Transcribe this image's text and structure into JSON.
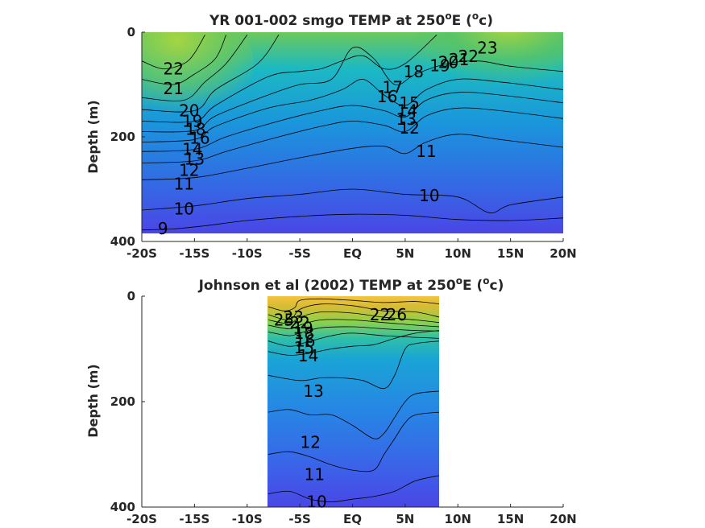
{
  "colors": {
    "low": "#4a46e6",
    "mid": "#14b6c9",
    "green": "#8fd14a",
    "high": "#f6c93c",
    "text": "#262626"
  },
  "chart_data": [
    {
      "type": "contour",
      "title_main": "YR 001-002 smgo TEMP at 250",
      "title_sup": "o",
      "title_mid": "E (",
      "title_end": "c)",
      "xlabel": "",
      "ylabel": "Depth (m)",
      "xlim": [
        -20,
        20
      ],
      "ylim": [
        400,
        0
      ],
      "x_ticks": [
        {
          "value": -20,
          "label": "-20S"
        },
        {
          "value": -15,
          "label": "-15S"
        },
        {
          "value": -10,
          "label": "-10S"
        },
        {
          "value": -5,
          "label": "-5S"
        },
        {
          "value": 0,
          "label": "EQ"
        },
        {
          "value": 5,
          "label": "5N"
        },
        {
          "value": 10,
          "label": "10N"
        },
        {
          "value": 15,
          "label": "15N"
        },
        {
          "value": 20,
          "label": "20N"
        }
      ],
      "y_ticks": [
        {
          "value": 0,
          "label": "0"
        },
        {
          "value": 200,
          "label": "200"
        },
        {
          "value": 400,
          "label": "400"
        }
      ],
      "data_extent": {
        "x": [
          -20,
          20
        ],
        "y": [
          0,
          382
        ]
      },
      "contour_labels": [
        {
          "text": "22",
          "x": -17.0,
          "y": 70
        },
        {
          "text": "21",
          "x": -17.0,
          "y": 108
        },
        {
          "text": "20",
          "x": -15.5,
          "y": 150
        },
        {
          "text": "19",
          "x": -15.2,
          "y": 170
        },
        {
          "text": "18",
          "x": -14.9,
          "y": 185
        },
        {
          "text": "16",
          "x": -14.5,
          "y": 202
        },
        {
          "text": "14",
          "x": -15.2,
          "y": 224
        },
        {
          "text": "13",
          "x": -15.0,
          "y": 242
        },
        {
          "text": "12",
          "x": -15.5,
          "y": 264
        },
        {
          "text": "11",
          "x": -16.0,
          "y": 290
        },
        {
          "text": "10",
          "x": -16.0,
          "y": 338
        },
        {
          "text": "9",
          "x": -18.0,
          "y": 375
        },
        {
          "text": "18",
          "x": 5.8,
          "y": 75
        },
        {
          "text": "19",
          "x": 8.3,
          "y": 64
        },
        {
          "text": "20",
          "x": 9.1,
          "y": 58
        },
        {
          "text": "21",
          "x": 10.1,
          "y": 52
        },
        {
          "text": "22",
          "x": 11.0,
          "y": 46
        },
        {
          "text": "23",
          "x": 12.8,
          "y": 30
        },
        {
          "text": "17",
          "x": 3.8,
          "y": 105
        },
        {
          "text": "16",
          "x": 3.3,
          "y": 123
        },
        {
          "text": "15",
          "x": 5.4,
          "y": 135
        },
        {
          "text": "14",
          "x": 5.2,
          "y": 150
        },
        {
          "text": "13",
          "x": 5.1,
          "y": 166
        },
        {
          "text": "12",
          "x": 5.4,
          "y": 183
        },
        {
          "text": "11",
          "x": 7.0,
          "y": 228
        },
        {
          "text": "10",
          "x": 7.3,
          "y": 312
        }
      ],
      "contour_lines": [
        {
          "level": 22,
          "x": [
            -20,
            -18,
            -16,
            -15,
            -14
          ],
          "y": [
            55,
            70,
            60,
            40,
            5
          ]
        },
        {
          "level": 21,
          "x": [
            -20,
            -17,
            -15,
            -13,
            -12
          ],
          "y": [
            90,
            100,
            80,
            50,
            5
          ]
        },
        {
          "level": 20,
          "x": [
            -20,
            -16,
            -14,
            -12,
            -10
          ],
          "y": [
            125,
            130,
            95,
            60,
            5
          ]
        },
        {
          "level": 19,
          "x": [
            -20,
            -15,
            -13,
            -9,
            -7
          ],
          "y": [
            148,
            150,
            110,
            60,
            5
          ]
        },
        {
          "level": 18,
          "x": [
            -20,
            -15,
            -13,
            -8,
            -5,
            -3,
            -1,
            1,
            3,
            5,
            8
          ],
          "y": [
            170,
            170,
            140,
            85,
            75,
            70,
            55,
            45,
            70,
            60,
            5
          ]
        },
        {
          "level": 16,
          "x": [
            -20,
            -15,
            -13,
            -8,
            -5,
            -2,
            0,
            2,
            4,
            6,
            9,
            12,
            15,
            20
          ],
          "y": [
            190,
            188,
            160,
            120,
            100,
            90,
            30,
            50,
            100,
            80,
            60,
            55,
            65,
            75
          ]
        },
        {
          "level": 14,
          "x": [
            -20,
            -15,
            -13,
            -8,
            -4,
            -1,
            1,
            3,
            5,
            7,
            10,
            14,
            20
          ],
          "y": [
            210,
            205,
            180,
            145,
            130,
            110,
            90,
            120,
            140,
            110,
            90,
            95,
            110
          ]
        },
        {
          "level": 13,
          "x": [
            -20,
            -15,
            -12,
            -7,
            -3,
            0,
            3,
            5,
            7,
            10,
            14,
            20
          ],
          "y": [
            228,
            224,
            200,
            170,
            150,
            140,
            150,
            162,
            130,
            115,
            120,
            135
          ]
        },
        {
          "level": 12,
          "x": [
            -20,
            -15,
            -12,
            -7,
            -3,
            0,
            3,
            5,
            7,
            10,
            14,
            20
          ],
          "y": [
            250,
            246,
            228,
            200,
            180,
            170,
            178,
            190,
            160,
            145,
            150,
            165
          ]
        },
        {
          "level": 11,
          "x": [
            -20,
            -15,
            -10,
            -5,
            0,
            3,
            5,
            7,
            10,
            14,
            20
          ],
          "y": [
            282,
            278,
            260,
            240,
            222,
            218,
            232,
            210,
            195,
            205,
            220
          ]
        },
        {
          "level": 10,
          "x": [
            -20,
            -15,
            -10,
            -5,
            0,
            5,
            10,
            13,
            15,
            20
          ],
          "y": [
            340,
            332,
            318,
            310,
            300,
            310,
            315,
            345,
            330,
            315
          ]
        },
        {
          "level": 9,
          "x": [
            -20,
            -17,
            -14,
            -10,
            -5,
            0,
            5,
            10,
            15,
            20
          ],
          "y": [
            378,
            376,
            370,
            360,
            352,
            348,
            350,
            358,
            360,
            355
          ]
        }
      ]
    },
    {
      "type": "contour",
      "title_main": "Johnson et al (2002) TEMP at 250",
      "title_sup": "o",
      "title_mid": "E (",
      "title_end": "c)",
      "xlabel": "",
      "ylabel": "Depth (m)",
      "xlim": [
        -20,
        20
      ],
      "ylim": [
        400,
        0
      ],
      "x_ticks": [
        {
          "value": -20,
          "label": "-20S"
        },
        {
          "value": -15,
          "label": "-15S"
        },
        {
          "value": -10,
          "label": "-10S"
        },
        {
          "value": -5,
          "label": "-5S"
        },
        {
          "value": 0,
          "label": "EQ"
        },
        {
          "value": 5,
          "label": "5N"
        },
        {
          "value": 10,
          "label": "10N"
        },
        {
          "value": 15,
          "label": "15N"
        },
        {
          "value": 20,
          "label": "20N"
        }
      ],
      "y_ticks": [
        {
          "value": 0,
          "label": "0"
        },
        {
          "value": 200,
          "label": "200"
        },
        {
          "value": 400,
          "label": "400"
        }
      ],
      "data_extent": {
        "x": [
          -8,
          8.3
        ],
        "y": [
          0,
          400
        ]
      },
      "contour_labels": [
        {
          "text": "25",
          "x": -6.5,
          "y": 45
        },
        {
          "text": "23",
          "x": -5.6,
          "y": 40
        },
        {
          "text": "22",
          "x": -5.0,
          "y": 50
        },
        {
          "text": "19",
          "x": -4.7,
          "y": 60
        },
        {
          "text": "18",
          "x": -4.6,
          "y": 70
        },
        {
          "text": "16",
          "x": -4.5,
          "y": 85
        },
        {
          "text": "15",
          "x": -4.6,
          "y": 98
        },
        {
          "text": "14",
          "x": -4.2,
          "y": 113
        },
        {
          "text": "13",
          "x": -3.7,
          "y": 180
        },
        {
          "text": "12",
          "x": -4.0,
          "y": 277
        },
        {
          "text": "11",
          "x": -3.6,
          "y": 338
        },
        {
          "text": "10",
          "x": -3.4,
          "y": 390
        },
        {
          "text": "22",
          "x": 2.6,
          "y": 35
        },
        {
          "text": "26",
          "x": 4.2,
          "y": 35
        }
      ],
      "contour_lines": [
        {
          "level": 24,
          "x": [
            -8,
            -6.5,
            -5.5,
            -5,
            -3,
            0,
            3,
            6,
            8.3
          ],
          "y": [
            20,
            28,
            22,
            8,
            5,
            8,
            12,
            10,
            15
          ]
        },
        {
          "level": 22,
          "x": [
            -8,
            -6,
            -5,
            -3,
            0,
            3,
            6,
            8.3
          ],
          "y": [
            35,
            45,
            25,
            15,
            18,
            28,
            30,
            40
          ]
        },
        {
          "level": 20,
          "x": [
            -8,
            -6,
            -5,
            -3,
            0,
            3,
            6,
            8.3
          ],
          "y": [
            45,
            52,
            40,
            30,
            32,
            40,
            45,
            50
          ]
        },
        {
          "level": 18,
          "x": [
            -8,
            -6,
            -5,
            -3,
            0,
            3,
            6,
            8.3
          ],
          "y": [
            55,
            62,
            55,
            45,
            45,
            50,
            55,
            58
          ]
        },
        {
          "level": 16,
          "x": [
            -8,
            -6,
            -5,
            -3,
            0,
            3,
            6,
            8.3
          ],
          "y": [
            68,
            75,
            70,
            60,
            58,
            62,
            65,
            66
          ]
        },
        {
          "level": 15,
          "x": [
            -8,
            -6,
            -4.5,
            -2,
            0,
            3,
            6,
            8.3
          ],
          "y": [
            85,
            95,
            88,
            75,
            70,
            75,
            78,
            80
          ]
        },
        {
          "level": 14,
          "x": [
            -8,
            -6,
            -4,
            -2,
            0,
            2,
            4,
            6,
            8.3
          ],
          "y": [
            105,
            112,
            108,
            100,
            95,
            92,
            80,
            70,
            65
          ]
        },
        {
          "level": 13,
          "x": [
            -8,
            -5,
            -3,
            -1,
            1,
            3,
            4,
            5,
            6,
            8.3
          ],
          "y": [
            150,
            160,
            155,
            155,
            160,
            175,
            150,
            100,
            90,
            85
          ]
        },
        {
          "level": 12,
          "x": [
            -8,
            -6,
            -4,
            -2,
            0,
            2,
            3,
            4,
            5,
            6,
            8.3
          ],
          "y": [
            220,
            215,
            225,
            225,
            245,
            270,
            260,
            230,
            200,
            185,
            180
          ]
        },
        {
          "level": 11,
          "x": [
            -8,
            -6,
            -4,
            -2,
            0,
            2,
            3,
            4,
            5,
            6,
            8.3
          ],
          "y": [
            300,
            295,
            305,
            320,
            330,
            330,
            300,
            270,
            240,
            225,
            220
          ]
        },
        {
          "level": 10,
          "x": [
            -8,
            -6,
            -4,
            -2,
            0,
            2,
            4,
            6,
            8.3
          ],
          "y": [
            375,
            370,
            385,
            390,
            385,
            380,
            370,
            350,
            340
          ]
        }
      ]
    }
  ]
}
